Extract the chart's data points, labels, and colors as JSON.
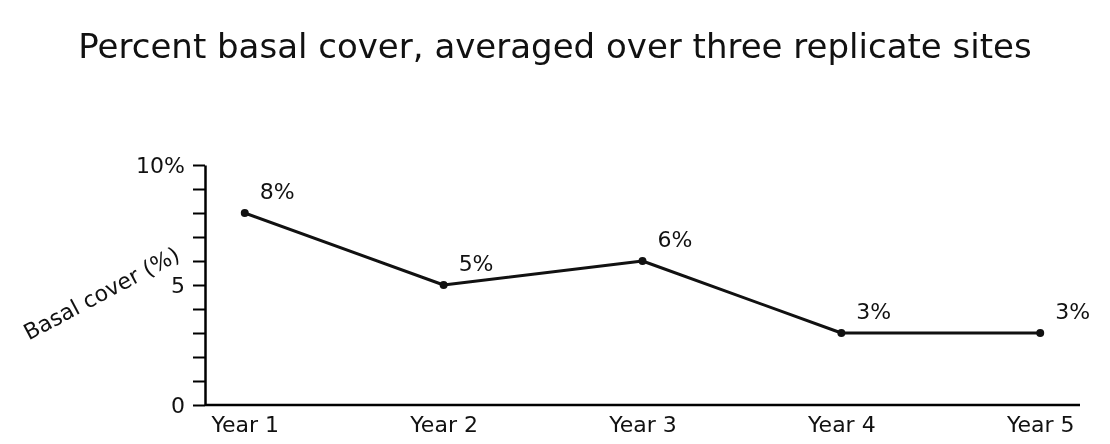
{
  "chart_data": {
    "type": "line",
    "title": "Percent basal cover, averaged over three replicate sites",
    "ylabel": "Basal cover (%)",
    "categories": [
      "Year 1",
      "Year 2",
      "Year 3",
      "Year 4",
      "Year 5"
    ],
    "series": [
      {
        "color": "#111111",
        "values": [
          8,
          5,
          6,
          3,
          3
        ],
        "value_labels": [
          "8%",
          "5%",
          "6%",
          "3%",
          "3%"
        ]
      }
    ],
    "ylim": [
      0,
      10
    ],
    "yticks": [
      0,
      {
        "value": 1,
        "label": null
      },
      {
        "value": 2,
        "label": null
      },
      {
        "value": 3,
        "label": null
      },
      {
        "value": 4,
        "label": null
      },
      5,
      {
        "value": 6,
        "label": null
      },
      {
        "value": 7,
        "label": null
      },
      {
        "value": 8,
        "label": null
      },
      {
        "value": 9,
        "label": null
      },
      {
        "value": 10,
        "label": "10%"
      }
    ],
    "grid": false,
    "marker": "circle",
    "line_style": "solid"
  }
}
